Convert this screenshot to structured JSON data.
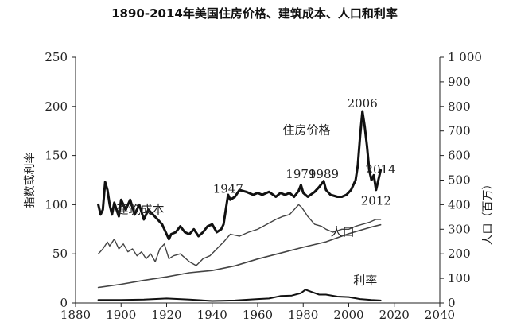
{
  "title": "1890-2014年美国住房价格、建筑成本、人口和利率",
  "chart_data": {
    "type": "line",
    "title": "1890-2014年美国住房价格、建筑成本、人口和利率",
    "xlabel": "",
    "ylabel_left": "指数或利率",
    "ylabel_right": "人口（百万）",
    "xlim": [
      1880,
      2040
    ],
    "ylim_left": [
      0,
      250
    ],
    "ylim_right": [
      0,
      1000
    ],
    "x_ticks": [
      "1880",
      "1900",
      "1920",
      "1940",
      "1960",
      "1980",
      "2000",
      "2020",
      "2040"
    ],
    "y_ticks_left": [
      "0",
      "50",
      "100",
      "150",
      "200",
      "250"
    ],
    "y_ticks_right": [
      "0",
      "100",
      "200",
      "300",
      "400",
      "500",
      "600",
      "700",
      "800",
      "900",
      "1 000"
    ],
    "grid": false,
    "legend": "inline labels",
    "annotations": [
      {
        "text": "1947",
        "x": 1947,
        "y": 112
      },
      {
        "text": "1979",
        "x": 1979,
        "y": 127
      },
      {
        "text": "1989",
        "x": 1989,
        "y": 127
      },
      {
        "text": "2006",
        "x": 2006,
        "y": 199
      },
      {
        "text": "2012",
        "x": 2012,
        "y": 100
      },
      {
        "text": "2014",
        "x": 2014,
        "y": 132
      }
    ],
    "series": [
      {
        "name": "住房价格",
        "axis": "left",
        "label_position": [
          1971,
          172
        ],
        "x": [
          1890,
          1891,
          1892,
          1893,
          1894,
          1895,
          1896,
          1897,
          1898,
          1899,
          1900,
          1902,
          1904,
          1906,
          1908,
          1910,
          1912,
          1914,
          1916,
          1918,
          1920,
          1921,
          1922,
          1924,
          1926,
          1928,
          1930,
          1932,
          1934,
          1936,
          1938,
          1940,
          1942,
          1944,
          1945,
          1946,
          1947,
          1948,
          1950,
          1952,
          1955,
          1958,
          1960,
          1962,
          1965,
          1968,
          1970,
          1972,
          1974,
          1976,
          1978,
          1979,
          1980,
          1982,
          1985,
          1987,
          1989,
          1990,
          1992,
          1995,
          1997,
          1999,
          2001,
          2003,
          2004,
          2005,
          2006,
          2007,
          2008,
          2009,
          2010,
          2011,
          2012,
          2013,
          2014
        ],
        "values": [
          100,
          90,
          95,
          123,
          115,
          100,
          90,
          102,
          95,
          88,
          105,
          95,
          105,
          90,
          100,
          85,
          95,
          90,
          85,
          80,
          70,
          65,
          70,
          72,
          78,
          72,
          70,
          75,
          68,
          72,
          78,
          80,
          72,
          75,
          80,
          95,
          110,
          105,
          108,
          115,
          113,
          110,
          112,
          110,
          113,
          108,
          112,
          110,
          112,
          108,
          114,
          120,
          112,
          108,
          113,
          118,
          124,
          115,
          110,
          108,
          108,
          110,
          115,
          125,
          140,
          170,
          195,
          180,
          160,
          135,
          125,
          130,
          115,
          125,
          135
        ]
      },
      {
        "name": "建筑成本",
        "axis": "left",
        "label_position": [
          1898,
          91
        ],
        "x": [
          1890,
          1892,
          1894,
          1895,
          1897,
          1899,
          1901,
          1903,
          1905,
          1907,
          1909,
          1911,
          1913,
          1915,
          1917,
          1919,
          1921,
          1923,
          1926,
          1930,
          1933,
          1936,
          1939,
          1942,
          1945,
          1948,
          1952,
          1956,
          1960,
          1964,
          1968,
          1971,
          1974,
          1976,
          1978,
          1979,
          1980,
          1982,
          1985,
          1988,
          1990,
          1993,
          1997,
          2000,
          2003,
          2006,
          2009,
          2012,
          2014
        ],
        "values": [
          50,
          55,
          62,
          58,
          65,
          55,
          60,
          52,
          55,
          48,
          52,
          45,
          50,
          42,
          55,
          60,
          45,
          48,
          50,
          42,
          38,
          45,
          48,
          55,
          62,
          70,
          68,
          72,
          75,
          80,
          85,
          88,
          90,
          95,
          100,
          98,
          95,
          88,
          80,
          78,
          75,
          72,
          75,
          75,
          78,
          80,
          82,
          85,
          85
        ]
      },
      {
        "name": "人口",
        "axis": "right",
        "label_position": [
          1992,
          273
        ],
        "x": [
          1890,
          1900,
          1910,
          1920,
          1930,
          1940,
          1950,
          1960,
          1970,
          1980,
          1990,
          2000,
          2010,
          2014
        ],
        "values": [
          63,
          76,
          92,
          106,
          123,
          132,
          151,
          179,
          203,
          227,
          249,
          282,
          309,
          318
        ]
      },
      {
        "name": "利率",
        "axis": "left",
        "label_position": [
          2002,
          19
        ],
        "x": [
          1890,
          1900,
          1910,
          1920,
          1930,
          1940,
          1950,
          1960,
          1965,
          1970,
          1975,
          1979,
          1981,
          1984,
          1987,
          1990,
          1995,
          2000,
          2005,
          2010,
          2014
        ],
        "values": [
          3,
          3,
          3.5,
          4.5,
          3.5,
          2,
          2.5,
          4,
          4.5,
          7,
          7.5,
          10,
          13.5,
          11,
          8.5,
          8.5,
          6.5,
          6,
          4,
          3,
          2.5
        ]
      }
    ]
  }
}
